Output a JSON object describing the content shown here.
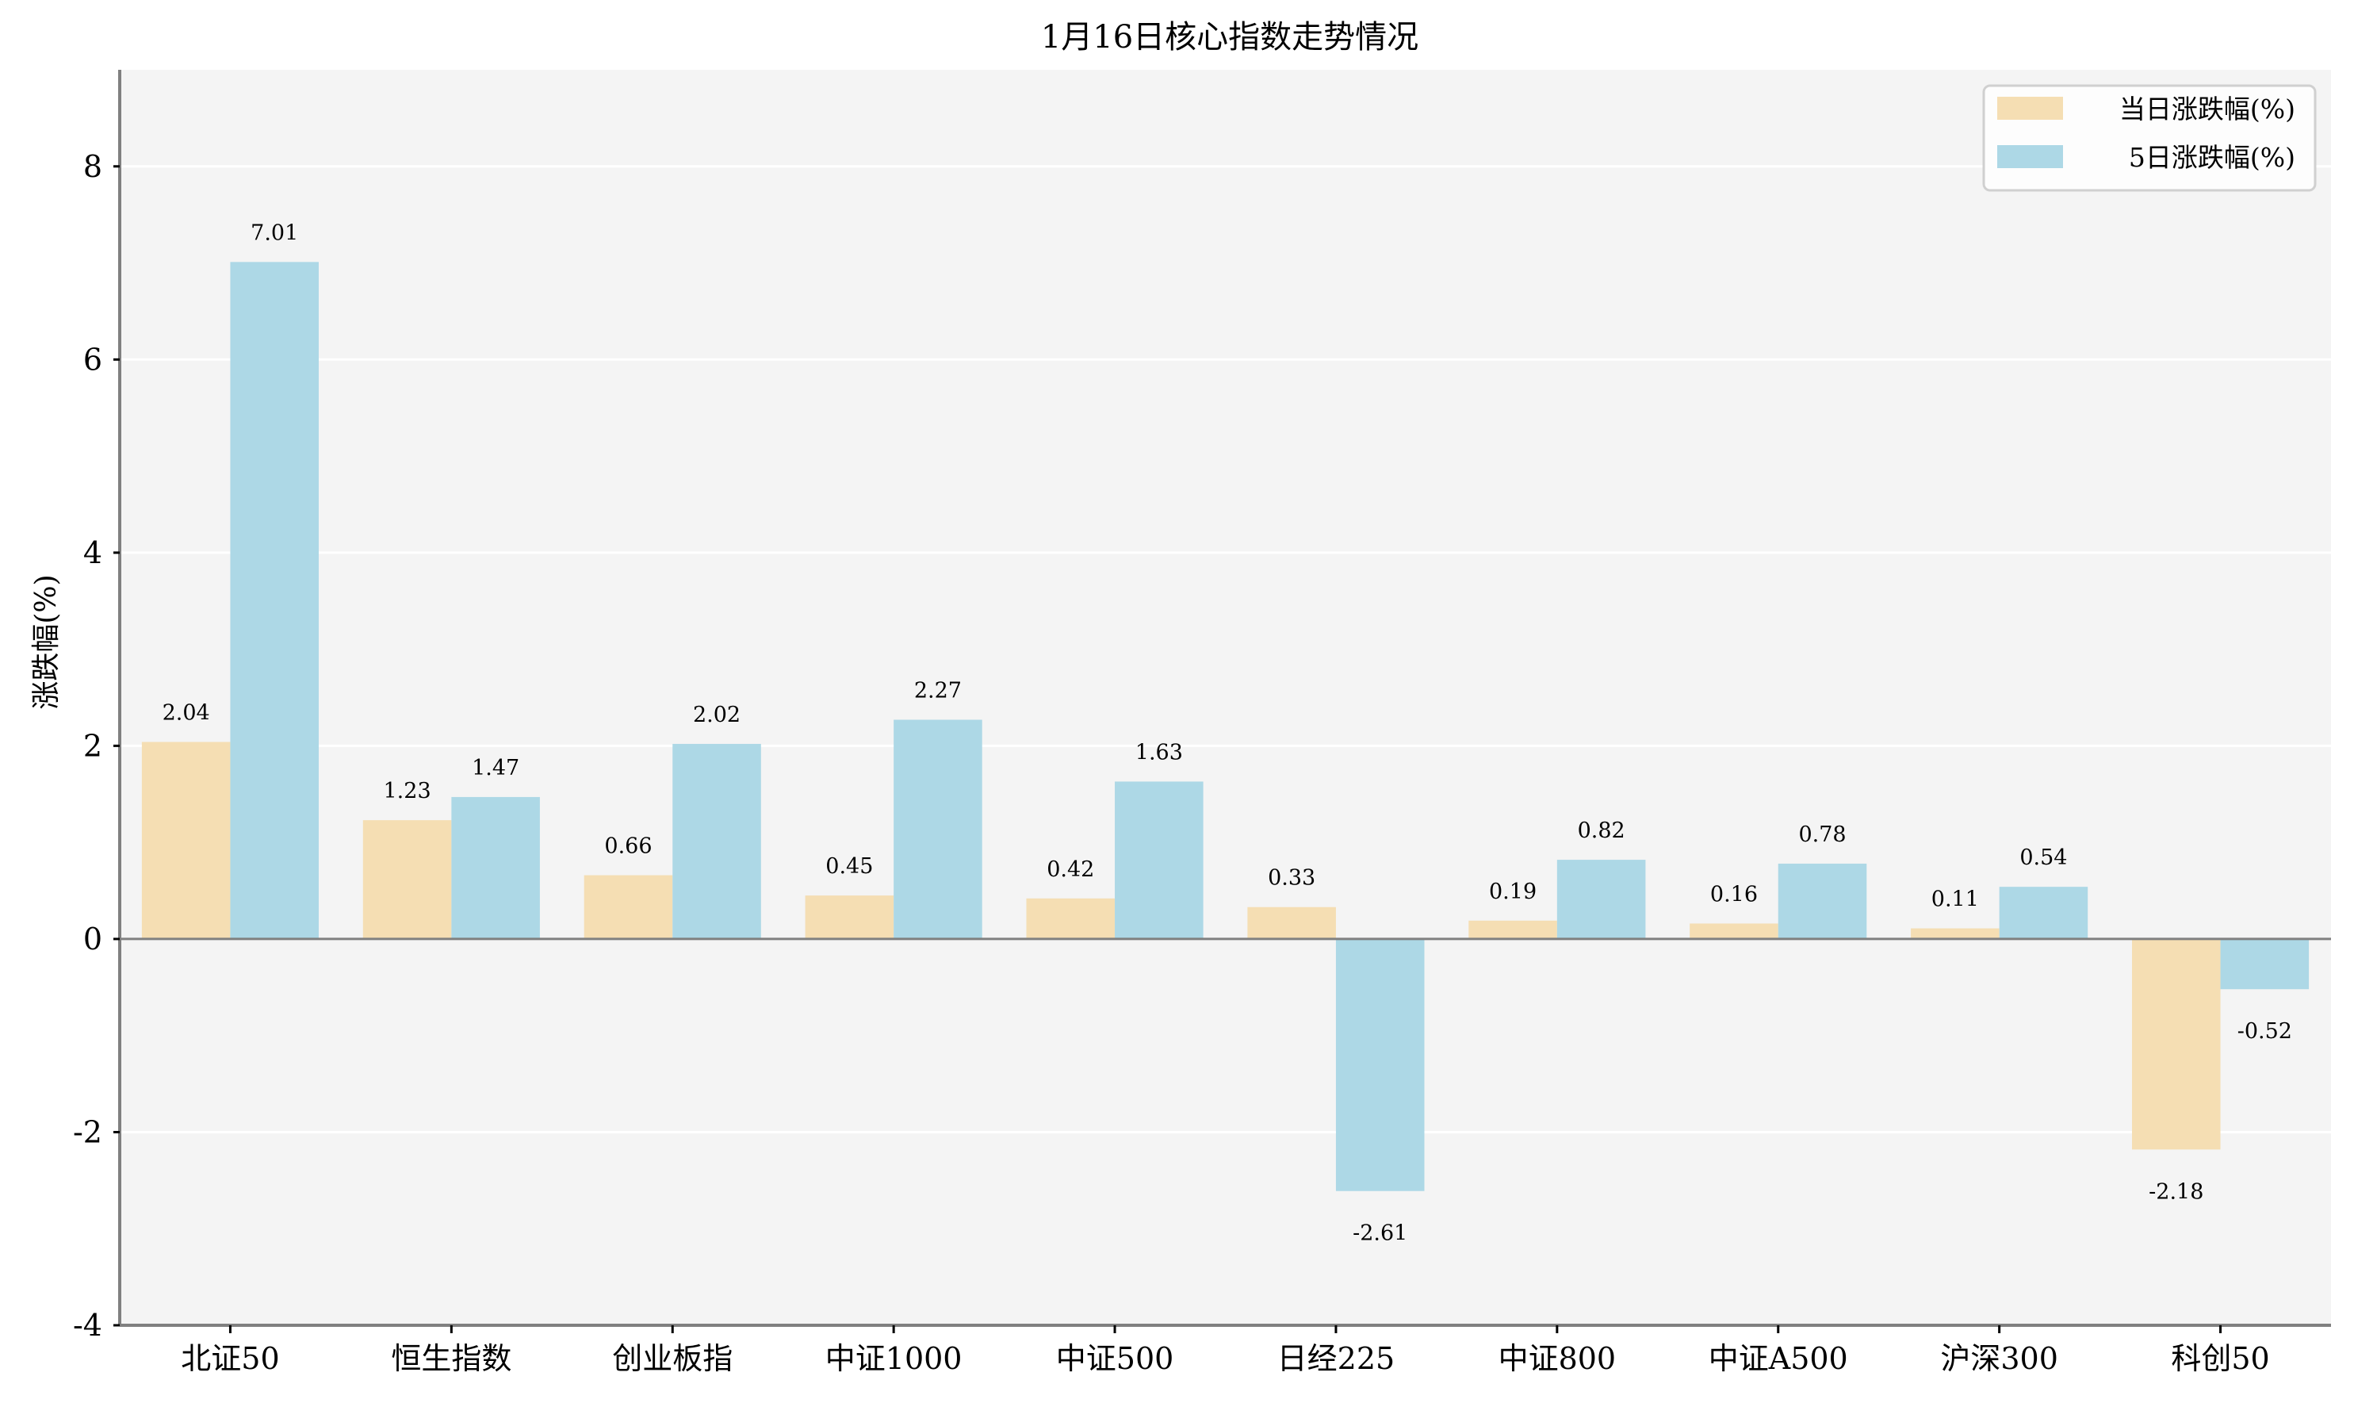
{
  "chart_data": {
    "type": "bar",
    "title": "1月16日核心指数走势情况",
    "xlabel": "",
    "ylabel": "涨跌幅(%)",
    "ylim": [
      -4,
      9
    ],
    "yticks": [
      -4,
      -2,
      0,
      2,
      4,
      6,
      8
    ],
    "grid": true,
    "legend_position": "upper right",
    "categories": [
      "北证50",
      "恒生指数",
      "创业板指",
      "中证1000",
      "中证500",
      "日经225",
      "中证800",
      "中证A500",
      "沪深300",
      "科创50"
    ],
    "series": [
      {
        "name": "当日涨跌幅(%)",
        "color": "#F5DEB3",
        "values": [
          2.04,
          1.23,
          0.66,
          0.45,
          0.42,
          0.33,
          0.19,
          0.16,
          0.11,
          -2.18
        ]
      },
      {
        "name": "5日涨跌幅(%)",
        "color": "#ADD8E6",
        "values": [
          7.01,
          1.47,
          2.02,
          2.27,
          1.63,
          -2.61,
          0.82,
          0.78,
          0.54,
          -0.52
        ]
      }
    ]
  },
  "colors": {
    "plot_bg": "#F4F4F4",
    "grid": "#FFFFFF",
    "axis": "#808080",
    "zero_line": "#808080"
  }
}
